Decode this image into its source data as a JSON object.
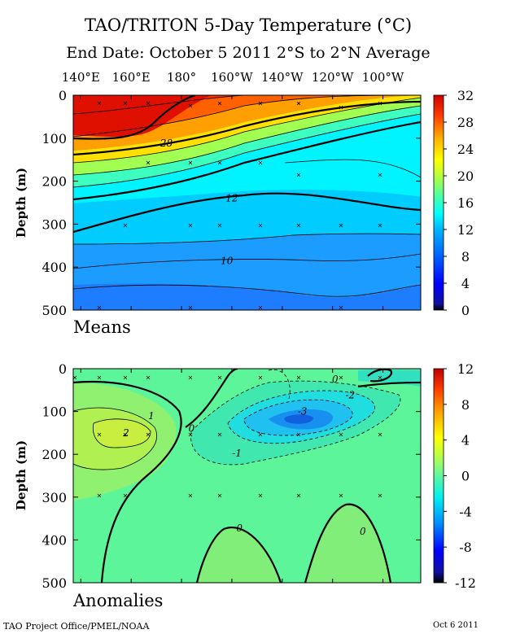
{
  "title": "TAO/TRITON 5-Day Temperature (°C)",
  "subtitle": "End Date: October 5 2011   2°S to 2°N Average",
  "footer_left": "TAO Project Office/PMEL/NOAA",
  "footer_right": "Oct  6 2011",
  "colors": {
    "background": "#ffffff",
    "frame": "#000000",
    "warm_accent": "#e02000",
    "cool_accent": "#00ffff",
    "anomaly_base": "#5cf59a"
  },
  "chart_data": [
    {
      "type": "heatmap",
      "panel_label": "Means",
      "xlabel": "",
      "ylabel": "Depth (m)",
      "x_tick_labels": [
        "140°E",
        "160°E",
        "180°",
        "160°W",
        "140°W",
        "120°W",
        "100°W"
      ],
      "x_tick_lon_east": [
        140,
        160,
        180,
        200,
        220,
        240,
        260
      ],
      "xlim_lon_east": [
        137,
        275
      ],
      "y_ticks": [
        0,
        100,
        200,
        300,
        400,
        500
      ],
      "ylim": [
        500,
        0
      ],
      "colorbar": {
        "min": 0,
        "max": 32,
        "ticks": [
          0,
          4,
          8,
          12,
          16,
          20,
          24,
          28,
          32
        ]
      },
      "contour_labels": [
        {
          "text": "28",
          "lon_east": 174,
          "depth": 112
        },
        {
          "text": "12",
          "lon_east": 200,
          "depth": 240
        },
        {
          "text": "10",
          "lon_east": 198,
          "depth": 385
        }
      ],
      "mixed_layer_depth_m": [
        {
          "lon_east": 140,
          "depth": 95
        },
        {
          "lon_east": 160,
          "depth": 102
        },
        {
          "lon_east": 180,
          "depth": 108
        },
        {
          "lon_east": 200,
          "depth": 92
        },
        {
          "lon_east": 220,
          "depth": 62
        },
        {
          "lon_east": 240,
          "depth": 38
        },
        {
          "lon_east": 260,
          "depth": 18
        },
        {
          "lon_east": 275,
          "depth": 8
        }
      ],
      "thermocline_20C_depth_m": [
        {
          "lon_east": 140,
          "depth": 190
        },
        {
          "lon_east": 160,
          "depth": 180
        },
        {
          "lon_east": 180,
          "depth": 175
        },
        {
          "lon_east": 200,
          "depth": 150
        },
        {
          "lon_east": 220,
          "depth": 120
        },
        {
          "lon_east": 240,
          "depth": 92
        },
        {
          "lon_east": 260,
          "depth": 72
        },
        {
          "lon_east": 275,
          "depth": 62
        }
      ],
      "surface_temperature": [
        {
          "lon_east": 140,
          "value": 29.8
        },
        {
          "lon_east": 160,
          "value": 29.9
        },
        {
          "lon_east": 180,
          "value": 29.2
        },
        {
          "lon_east": 200,
          "value": 28.1
        },
        {
          "lon_east": 220,
          "value": 27.0
        },
        {
          "lon_east": 240,
          "value": 25.5
        },
        {
          "lon_east": 260,
          "value": 24.2
        },
        {
          "lon_east": 275,
          "value": 23.5
        }
      ],
      "temperature_12C_depth_m": [
        {
          "lon_east": 140,
          "depth": 310
        },
        {
          "lon_east": 160,
          "depth": 285
        },
        {
          "lon_east": 180,
          "depth": 262
        },
        {
          "lon_east": 200,
          "depth": 243
        },
        {
          "lon_east": 220,
          "depth": 225
        },
        {
          "lon_east": 240,
          "depth": 232
        },
        {
          "lon_east": 260,
          "depth": 258
        },
        {
          "lon_east": 275,
          "depth": 265
        }
      ]
    },
    {
      "type": "heatmap",
      "panel_label": "Anomalies",
      "xlabel": "",
      "ylabel": "Depth (m)",
      "x_tick_labels": [],
      "y_ticks": [
        0,
        100,
        200,
        300,
        400,
        500
      ],
      "ylim": [
        500,
        0
      ],
      "colorbar": {
        "min": -12,
        "max": 12,
        "ticks": [
          -12,
          -8,
          -4,
          0,
          4,
          8,
          12
        ]
      },
      "contour_labels": [
        {
          "text": "2",
          "lon_east": 158,
          "depth": 150
        },
        {
          "text": "1",
          "lon_east": 168,
          "depth": 110
        },
        {
          "text": "0",
          "lon_east": 184,
          "depth": 140
        },
        {
          "text": "-1",
          "lon_east": 202,
          "depth": 198
        },
        {
          "text": "-3",
          "lon_east": 228,
          "depth": 100
        },
        {
          "text": "-2",
          "lon_east": 247,
          "depth": 62
        },
        {
          "text": "0",
          "lon_east": 241,
          "depth": 25
        },
        {
          "text": "0",
          "lon_east": 203,
          "depth": 373
        },
        {
          "text": "0",
          "lon_east": 252,
          "depth": 380
        }
      ],
      "anomaly_extremes": [
        {
          "lon_east": 155,
          "depth": 150,
          "value": 2.5
        },
        {
          "lon_east": 224,
          "depth": 120,
          "value": -3.6
        }
      ]
    }
  ]
}
